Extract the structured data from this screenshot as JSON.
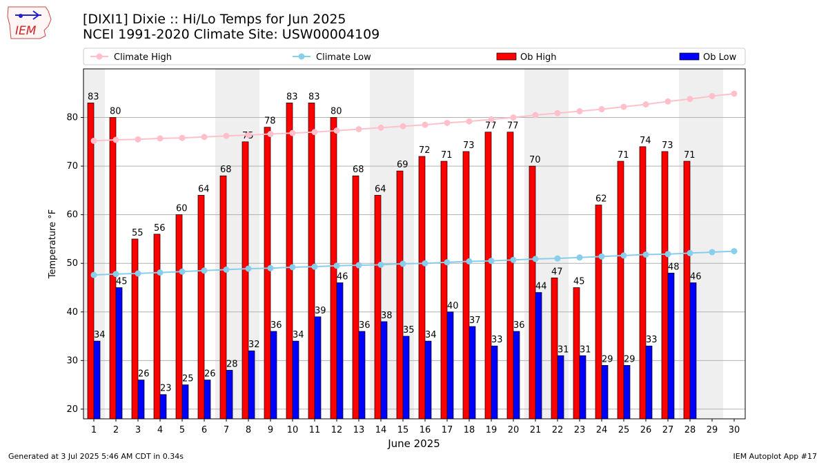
{
  "header": {
    "title_line1": "[DIXI1] Dixie :: Hi/Lo Temps for Jun 2025",
    "title_line2": "NCEI 1991-2020 Climate Site: USW00004109"
  },
  "logo": {
    "text": "IEM",
    "icon": "iem-logo-icon"
  },
  "footer": {
    "left": "Generated at 3 Jul 2025 5:46 AM CDT in 0.34s",
    "right": "IEM Autoplot App #17"
  },
  "chart_data": {
    "type": "bar",
    "xlabel": "June 2025",
    "ylabel": "Temperature °F",
    "ylim": [
      18,
      90
    ],
    "yticks": [
      20,
      30,
      40,
      50,
      60,
      70,
      80
    ],
    "grid": true,
    "legend_position": "top",
    "weekend_shaded_days": [
      1,
      7,
      8,
      14,
      15,
      21,
      22,
      28,
      29
    ],
    "days": [
      1,
      2,
      3,
      4,
      5,
      6,
      7,
      8,
      9,
      10,
      11,
      12,
      13,
      14,
      15,
      16,
      17,
      18,
      19,
      20,
      21,
      22,
      23,
      24,
      25,
      26,
      27,
      28,
      29,
      30
    ],
    "series": [
      {
        "name": "Climate High",
        "kind": "line",
        "color": "#ffc0cb",
        "values": [
          75.2,
          75.4,
          75.5,
          75.7,
          75.8,
          76.0,
          76.2,
          76.4,
          76.6,
          76.8,
          77.0,
          77.3,
          77.6,
          77.9,
          78.2,
          78.5,
          78.9,
          79.2,
          79.6,
          80.0,
          80.5,
          80.9,
          81.3,
          81.7,
          82.2,
          82.7,
          83.3,
          83.8,
          84.4,
          84.9
        ]
      },
      {
        "name": "Climate Low",
        "kind": "line",
        "color": "#87ceeb",
        "values": [
          47.6,
          47.8,
          47.9,
          48.1,
          48.3,
          48.5,
          48.7,
          48.9,
          49.0,
          49.2,
          49.3,
          49.5,
          49.6,
          49.7,
          49.9,
          50.0,
          50.2,
          50.4,
          50.5,
          50.7,
          50.9,
          51.0,
          51.2,
          51.4,
          51.6,
          51.8,
          51.9,
          52.1,
          52.3,
          52.5
        ]
      },
      {
        "name": "Ob High",
        "kind": "bar",
        "color": "#ff0000",
        "values": [
          83,
          80,
          55,
          56,
          60,
          64,
          68,
          75,
          78,
          83,
          83,
          80,
          68,
          64,
          69,
          72,
          71,
          73,
          77,
          77,
          70,
          47,
          45,
          62,
          71,
          74,
          73,
          71,
          null,
          null
        ]
      },
      {
        "name": "Ob Low",
        "kind": "bar",
        "color": "#0000ff",
        "values": [
          34,
          45,
          26,
          23,
          25,
          26,
          28,
          32,
          36,
          34,
          39,
          46,
          36,
          38,
          35,
          34,
          40,
          37,
          33,
          36,
          44,
          31,
          31,
          29,
          29,
          33,
          48,
          46,
          null,
          null
        ]
      }
    ]
  }
}
